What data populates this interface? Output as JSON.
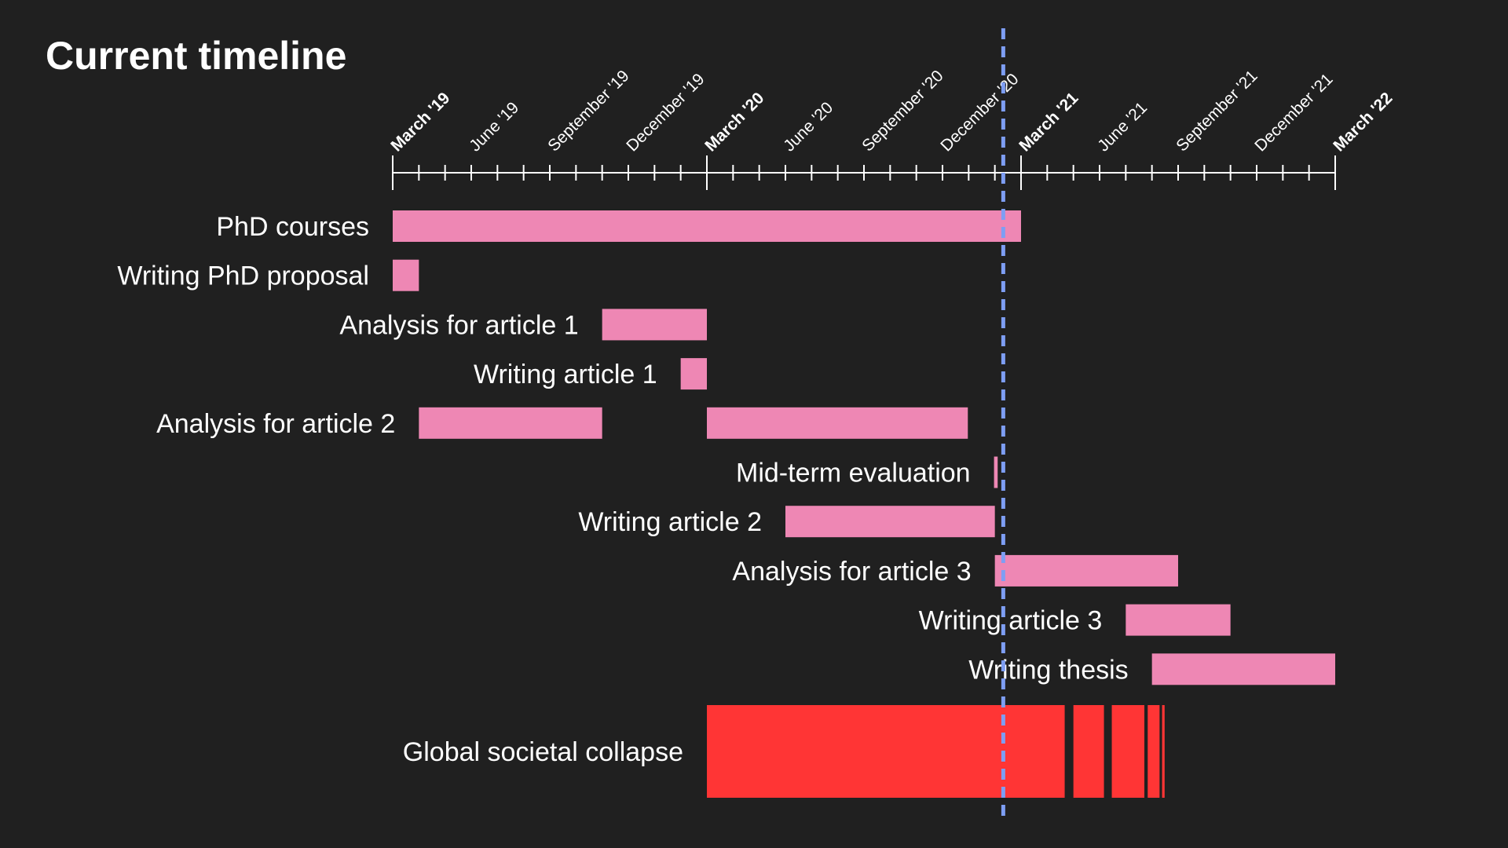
{
  "title": "Current timeline",
  "chart_data": {
    "type": "gantt",
    "title": "Current timeline",
    "x_axis": {
      "type": "date",
      "range": [
        "2019-03",
        "2022-03"
      ],
      "tick_interval_months": 1,
      "labels": [
        {
          "date": "2019-03",
          "text": "March '19",
          "bold": true
        },
        {
          "date": "2019-06",
          "text": "June '19",
          "bold": false
        },
        {
          "date": "2019-09",
          "text": "September '19",
          "bold": false
        },
        {
          "date": "2019-12",
          "text": "December '19",
          "bold": false
        },
        {
          "date": "2020-03",
          "text": "March '20",
          "bold": true
        },
        {
          "date": "2020-06",
          "text": "June '20",
          "bold": false
        },
        {
          "date": "2020-09",
          "text": "September '20",
          "bold": false
        },
        {
          "date": "2020-12",
          "text": "December '20",
          "bold": false
        },
        {
          "date": "2021-03",
          "text": "March '21",
          "bold": true
        },
        {
          "date": "2021-06",
          "text": "June '21",
          "bold": false
        },
        {
          "date": "2021-09",
          "text": "September '21",
          "bold": false
        },
        {
          "date": "2021-12",
          "text": "December '21",
          "bold": false
        },
        {
          "date": "2022-03",
          "text": "March '22",
          "bold": true
        }
      ]
    },
    "current_date": "2021-02-10",
    "tasks": [
      {
        "name": "PhD courses",
        "spans": [
          [
            "2019-03-01",
            "2021-03-01"
          ]
        ]
      },
      {
        "name": "Writing PhD proposal",
        "spans": [
          [
            "2019-03-01",
            "2019-04-01"
          ]
        ]
      },
      {
        "name": "Analysis for article 1",
        "spans": [
          [
            "2019-11-01",
            "2020-03-01"
          ]
        ]
      },
      {
        "name": "Writing article 1",
        "spans": [
          [
            "2020-02-01",
            "2020-03-01"
          ]
        ]
      },
      {
        "name": "Analysis for article 2",
        "spans": [
          [
            "2019-04-01",
            "2019-11-01"
          ],
          [
            "2020-03-01",
            "2020-12-31"
          ]
        ]
      },
      {
        "name": "Mid-term evaluation",
        "spans": [
          [
            "2021-01-31",
            "2021-02-04"
          ]
        ]
      },
      {
        "name": "Writing article 2",
        "spans": [
          [
            "2020-06-01",
            "2021-02-01"
          ]
        ]
      },
      {
        "name": "Analysis for article 3",
        "spans": [
          [
            "2021-02-01",
            "2021-09-01"
          ]
        ]
      },
      {
        "name": "Writing article 3",
        "spans": [
          [
            "2021-07-01",
            "2021-11-01"
          ]
        ]
      },
      {
        "name": "Writing thesis",
        "spans": [
          [
            "2021-08-01",
            "2022-03-01"
          ]
        ]
      }
    ],
    "event": {
      "name": "Global societal collapse",
      "spans": [
        [
          "2020-03-01",
          "2021-04-21"
        ],
        [
          "2021-05-01",
          "2021-06-06"
        ],
        [
          "2021-06-15",
          "2021-07-23"
        ],
        [
          "2021-07-27",
          "2021-08-10"
        ],
        [
          "2021-08-13",
          "2021-08-16"
        ]
      ]
    },
    "colors": {
      "background": "#202020",
      "task": "#ee87b4",
      "event": "#ff3535",
      "current_date_line": "#7e9ef4",
      "axis": "#ffffff",
      "text": "#ffffff"
    }
  }
}
